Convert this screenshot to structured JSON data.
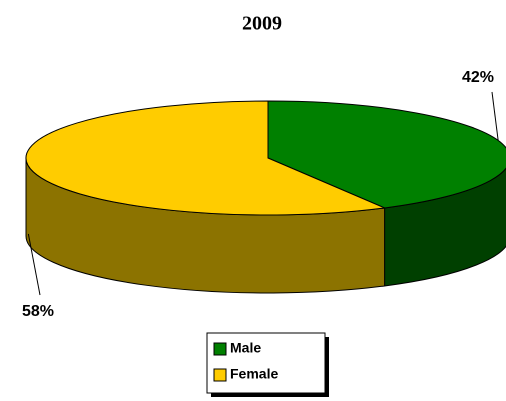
{
  "chart_data": {
    "type": "pie3d",
    "title": "2009",
    "categories": [
      "Male",
      "Female"
    ],
    "values": [
      42,
      58
    ],
    "value_labels": [
      "42%",
      "58%"
    ],
    "colors": [
      "#008000",
      "#ffcc00"
    ],
    "side_colors": [
      "#004000",
      "#8c7300"
    ],
    "legend": "bottom"
  }
}
